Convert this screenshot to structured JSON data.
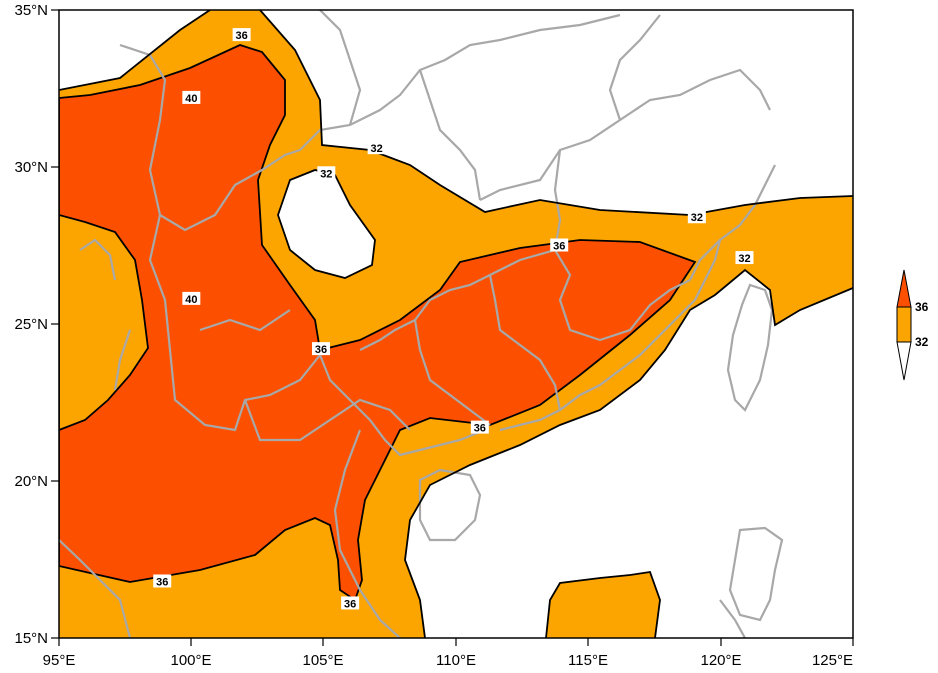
{
  "map": {
    "lon_ticks": [
      "95°E",
      "100°E",
      "105°E",
      "110°E",
      "115°E",
      "120°E",
      "125°E"
    ],
    "lat_ticks": [
      "35°N",
      "30°N",
      "25°N",
      "20°N",
      "15°N"
    ],
    "extent": {
      "lon": [
        95,
        125
      ],
      "lat": [
        15,
        35
      ]
    }
  },
  "contour_labels": [
    {
      "text": "40",
      "lon": 100.0,
      "lat": 32.2
    },
    {
      "text": "40",
      "lon": 100.0,
      "lat": 25.8
    },
    {
      "text": "36",
      "lon": 101.9,
      "lat": 34.2
    },
    {
      "text": "36",
      "lon": 104.9,
      "lat": 24.2
    },
    {
      "text": "36",
      "lon": 113.9,
      "lat": 27.5
    },
    {
      "text": "36",
      "lon": 110.9,
      "lat": 21.7
    },
    {
      "text": "36",
      "lon": 98.9,
      "lat": 16.8
    },
    {
      "text": "36",
      "lon": 106.0,
      "lat": 16.1
    },
    {
      "text": "32",
      "lon": 107.0,
      "lat": 30.6
    },
    {
      "text": "32",
      "lon": 105.1,
      "lat": 29.8
    },
    {
      "text": "32",
      "lon": 119.1,
      "lat": 28.4
    },
    {
      "text": "32",
      "lon": 120.9,
      "lat": 27.1
    }
  ],
  "legend": {
    "levels": [
      "36",
      "32"
    ],
    "colors": {
      "above_36": "#fc5000",
      "32_36": "#fca500",
      "below_32": "#ffffff"
    }
  },
  "colors": {
    "border": "#a8a8a8",
    "contour": "#000000",
    "band_32_36": "#fca500",
    "band_above_36": "#fc5000"
  }
}
